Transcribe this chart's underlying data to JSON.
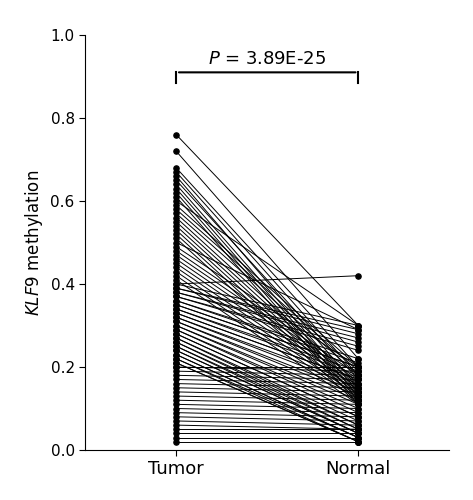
{
  "ylabel": "KLF9 methylation",
  "xlabel_tumor": "Tumor",
  "xlabel_normal": "Normal",
  "pvalue_text": "P = 3.89E-25",
  "ylim": [
    0.0,
    1.0
  ],
  "yticks": [
    0.0,
    0.2,
    0.4,
    0.6,
    0.8,
    1.0
  ],
  "line_color": "#000000",
  "dot_color": "#000000",
  "dot_size": 14,
  "line_width": 0.7,
  "figsize": [
    4.73,
    5.0
  ],
  "dpi": 100,
  "tumor_values": [
    0.76,
    0.72,
    0.68,
    0.67,
    0.66,
    0.65,
    0.64,
    0.63,
    0.62,
    0.61,
    0.6,
    0.59,
    0.58,
    0.57,
    0.56,
    0.55,
    0.54,
    0.53,
    0.52,
    0.51,
    0.5,
    0.49,
    0.48,
    0.47,
    0.46,
    0.45,
    0.44,
    0.43,
    0.42,
    0.41,
    0.4,
    0.4,
    0.39,
    0.39,
    0.38,
    0.38,
    0.37,
    0.37,
    0.36,
    0.36,
    0.35,
    0.35,
    0.34,
    0.34,
    0.33,
    0.33,
    0.32,
    0.32,
    0.31,
    0.31,
    0.3,
    0.3,
    0.29,
    0.29,
    0.28,
    0.28,
    0.27,
    0.27,
    0.26,
    0.26,
    0.25,
    0.25,
    0.24,
    0.24,
    0.23,
    0.23,
    0.22,
    0.22,
    0.21,
    0.21,
    0.2,
    0.2,
    0.19,
    0.18,
    0.17,
    0.16,
    0.15,
    0.14,
    0.13,
    0.12,
    0.11,
    0.1,
    0.09,
    0.08,
    0.07,
    0.06,
    0.05,
    0.04,
    0.03,
    0.02
  ],
  "normal_values": [
    0.3,
    0.22,
    0.2,
    0.18,
    0.15,
    0.17,
    0.14,
    0.13,
    0.12,
    0.11,
    0.3,
    0.2,
    0.19,
    0.18,
    0.16,
    0.15,
    0.14,
    0.13,
    0.12,
    0.11,
    0.29,
    0.2,
    0.18,
    0.17,
    0.16,
    0.15,
    0.14,
    0.13,
    0.12,
    0.11,
    0.42,
    0.3,
    0.29,
    0.28,
    0.27,
    0.26,
    0.25,
    0.24,
    0.22,
    0.21,
    0.2,
    0.2,
    0.19,
    0.18,
    0.17,
    0.17,
    0.16,
    0.15,
    0.14,
    0.13,
    0.12,
    0.11,
    0.1,
    0.09,
    0.08,
    0.08,
    0.07,
    0.06,
    0.06,
    0.05,
    0.05,
    0.04,
    0.04,
    0.04,
    0.03,
    0.03,
    0.03,
    0.02,
    0.02,
    0.02,
    0.2,
    0.19,
    0.18,
    0.17,
    0.16,
    0.15,
    0.14,
    0.13,
    0.12,
    0.11,
    0.1,
    0.09,
    0.08,
    0.07,
    0.06,
    0.05,
    0.05,
    0.04,
    0.03,
    0.02
  ]
}
